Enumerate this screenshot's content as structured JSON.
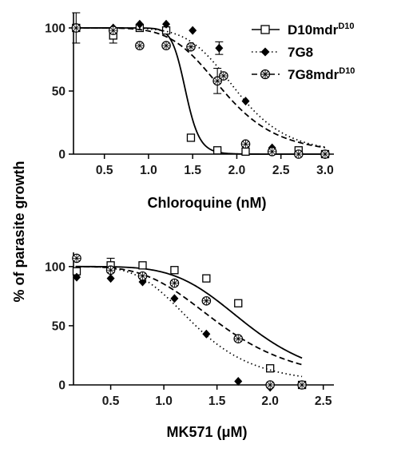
{
  "shared_ylabel": "% of parasite growth",
  "legend": [
    {
      "name_main": "D10mdr",
      "name_sup": "D10",
      "marker": "open-square",
      "line": "solid"
    },
    {
      "name_main": "7G8",
      "name_sup": "",
      "marker": "filled-diamond",
      "line": "dotted"
    },
    {
      "name_main": "7G8mdr",
      "name_sup": "D10",
      "marker": "circle-cross",
      "line": "dashed"
    }
  ],
  "chart_data": [
    {
      "type": "scatter",
      "xlabel": "Chloroquine (nM)",
      "ylabel": "% of parasite growth",
      "xlim": [
        0.15,
        3.1
      ],
      "ylim": [
        0,
        112
      ],
      "xticks": [
        "0.5",
        "1.0",
        "1.5",
        "2.0",
        "2.5",
        "3.0"
      ],
      "yticks": [
        "0",
        "50",
        "100"
      ],
      "series": [
        {
          "name": "D10mdrD10",
          "fit": {
            "ic50": 1.42,
            "hill": 18
          },
          "x": [
            0.18,
            0.6,
            0.9,
            1.2,
            1.48,
            1.78,
            2.1,
            2.7,
            3.0
          ],
          "y": [
            100,
            94,
            100,
            98,
            13,
            3,
            2,
            3,
            0
          ],
          "err": [
            12,
            6,
            0,
            0,
            0,
            0,
            0,
            0,
            0
          ]
        },
        {
          "name": "7G8",
          "fit": {
            "ic50": 2.0,
            "hill": 7
          },
          "x": [
            0.18,
            0.6,
            0.9,
            1.2,
            1.5,
            1.8,
            2.1,
            2.4,
            2.7,
            3.0
          ],
          "y": [
            100,
            100,
            103,
            103,
            98,
            84,
            42,
            5,
            0,
            0
          ],
          "err": [
            0,
            0,
            0,
            0,
            0,
            5,
            0,
            0,
            0,
            0
          ]
        },
        {
          "name": "7G8mdrD10",
          "fit": {
            "ic50": 1.85,
            "hill": 6
          },
          "x": [
            0.18,
            0.6,
            0.9,
            1.2,
            1.48,
            1.78,
            1.85,
            2.1,
            2.4,
            2.7,
            3.0
          ],
          "y": [
            100,
            98,
            86,
            86,
            85,
            58,
            62,
            8,
            2,
            0,
            0
          ],
          "err": [
            0,
            0,
            0,
            0,
            0,
            10,
            0,
            0,
            0,
            0,
            0
          ]
        }
      ]
    },
    {
      "type": "scatter",
      "xlabel": "MK571 (μM)",
      "ylabel": "% of parasite growth",
      "xlim": [
        0.15,
        2.6
      ],
      "ylim": [
        0,
        112
      ],
      "xticks": [
        "0.5",
        "1.0",
        "1.5",
        "2.0",
        "2.5"
      ],
      "yticks": [
        "0",
        "50",
        "100"
      ],
      "series": [
        {
          "name": "D10mdrD10",
          "fit": {
            "ic50": 1.8,
            "hill": 5
          },
          "x": [
            0.18,
            0.5,
            0.8,
            1.1,
            1.4,
            1.7,
            2.0,
            2.3
          ],
          "y": [
            96,
            101,
            101,
            97,
            90,
            69,
            14,
            0
          ],
          "err": [
            0,
            6,
            0,
            0,
            0,
            0,
            0,
            0
          ]
        },
        {
          "name": "7G8",
          "fit": {
            "ic50": 1.3,
            "hill": 4.5
          },
          "x": [
            0.18,
            0.5,
            0.8,
            1.1,
            1.4,
            1.7,
            2.0,
            2.3
          ],
          "y": [
            91,
            90,
            87,
            73,
            43,
            3,
            -2,
            0
          ],
          "err": [
            0,
            0,
            0,
            0,
            0,
            0,
            0,
            0
          ]
        },
        {
          "name": "7G8mdrD10",
          "fit": {
            "ic50": 1.55,
            "hill": 4
          },
          "x": [
            0.18,
            0.5,
            0.8,
            1.1,
            1.4,
            1.7,
            2.0,
            2.3
          ],
          "y": [
            107,
            97,
            92,
            86,
            71,
            39,
            0,
            0
          ],
          "err": [
            0,
            0,
            0,
            0,
            0,
            0,
            0,
            0
          ]
        }
      ]
    }
  ]
}
